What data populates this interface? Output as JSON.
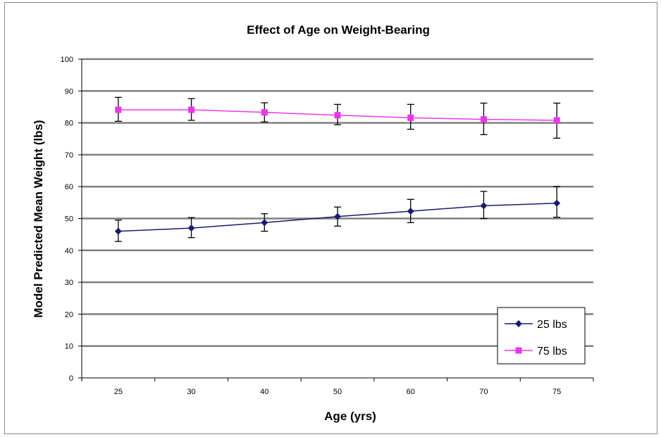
{
  "chart_data": {
    "type": "line",
    "title": "Effect of Age on Weight-Bearing",
    "xlabel": "Age (yrs)",
    "ylabel": "Model Predicted Mean Weight (lbs)",
    "categories": [
      "25",
      "30",
      "40",
      "50",
      "60",
      "70",
      "75"
    ],
    "ylim": [
      0,
      100
    ],
    "yticks": [
      0,
      10,
      20,
      30,
      40,
      50,
      60,
      70,
      80,
      90,
      100
    ],
    "grid": true,
    "legend_position": "bottom-right",
    "series": [
      {
        "name": "25 lbs",
        "color": "#1a1a6e",
        "marker": "diamond",
        "values": [
          46.0,
          47.0,
          48.7,
          50.6,
          52.3,
          54.0,
          54.8
        ],
        "error_upper": [
          49.5,
          50.3,
          51.5,
          53.6,
          56.0,
          58.5,
          60.0
        ],
        "error_lower": [
          42.8,
          44.0,
          46.0,
          47.6,
          48.7,
          50.0,
          50.4
        ]
      },
      {
        "name": "75 lbs",
        "color": "#e838e8",
        "marker": "square",
        "values": [
          84.1,
          84.1,
          83.3,
          82.4,
          81.6,
          81.1,
          80.8
        ],
        "error_upper": [
          88.0,
          87.6,
          86.3,
          85.8,
          85.8,
          86.2,
          86.2
        ],
        "error_lower": [
          80.5,
          80.8,
          80.3,
          79.4,
          78.0,
          76.3,
          75.2
        ]
      }
    ]
  }
}
